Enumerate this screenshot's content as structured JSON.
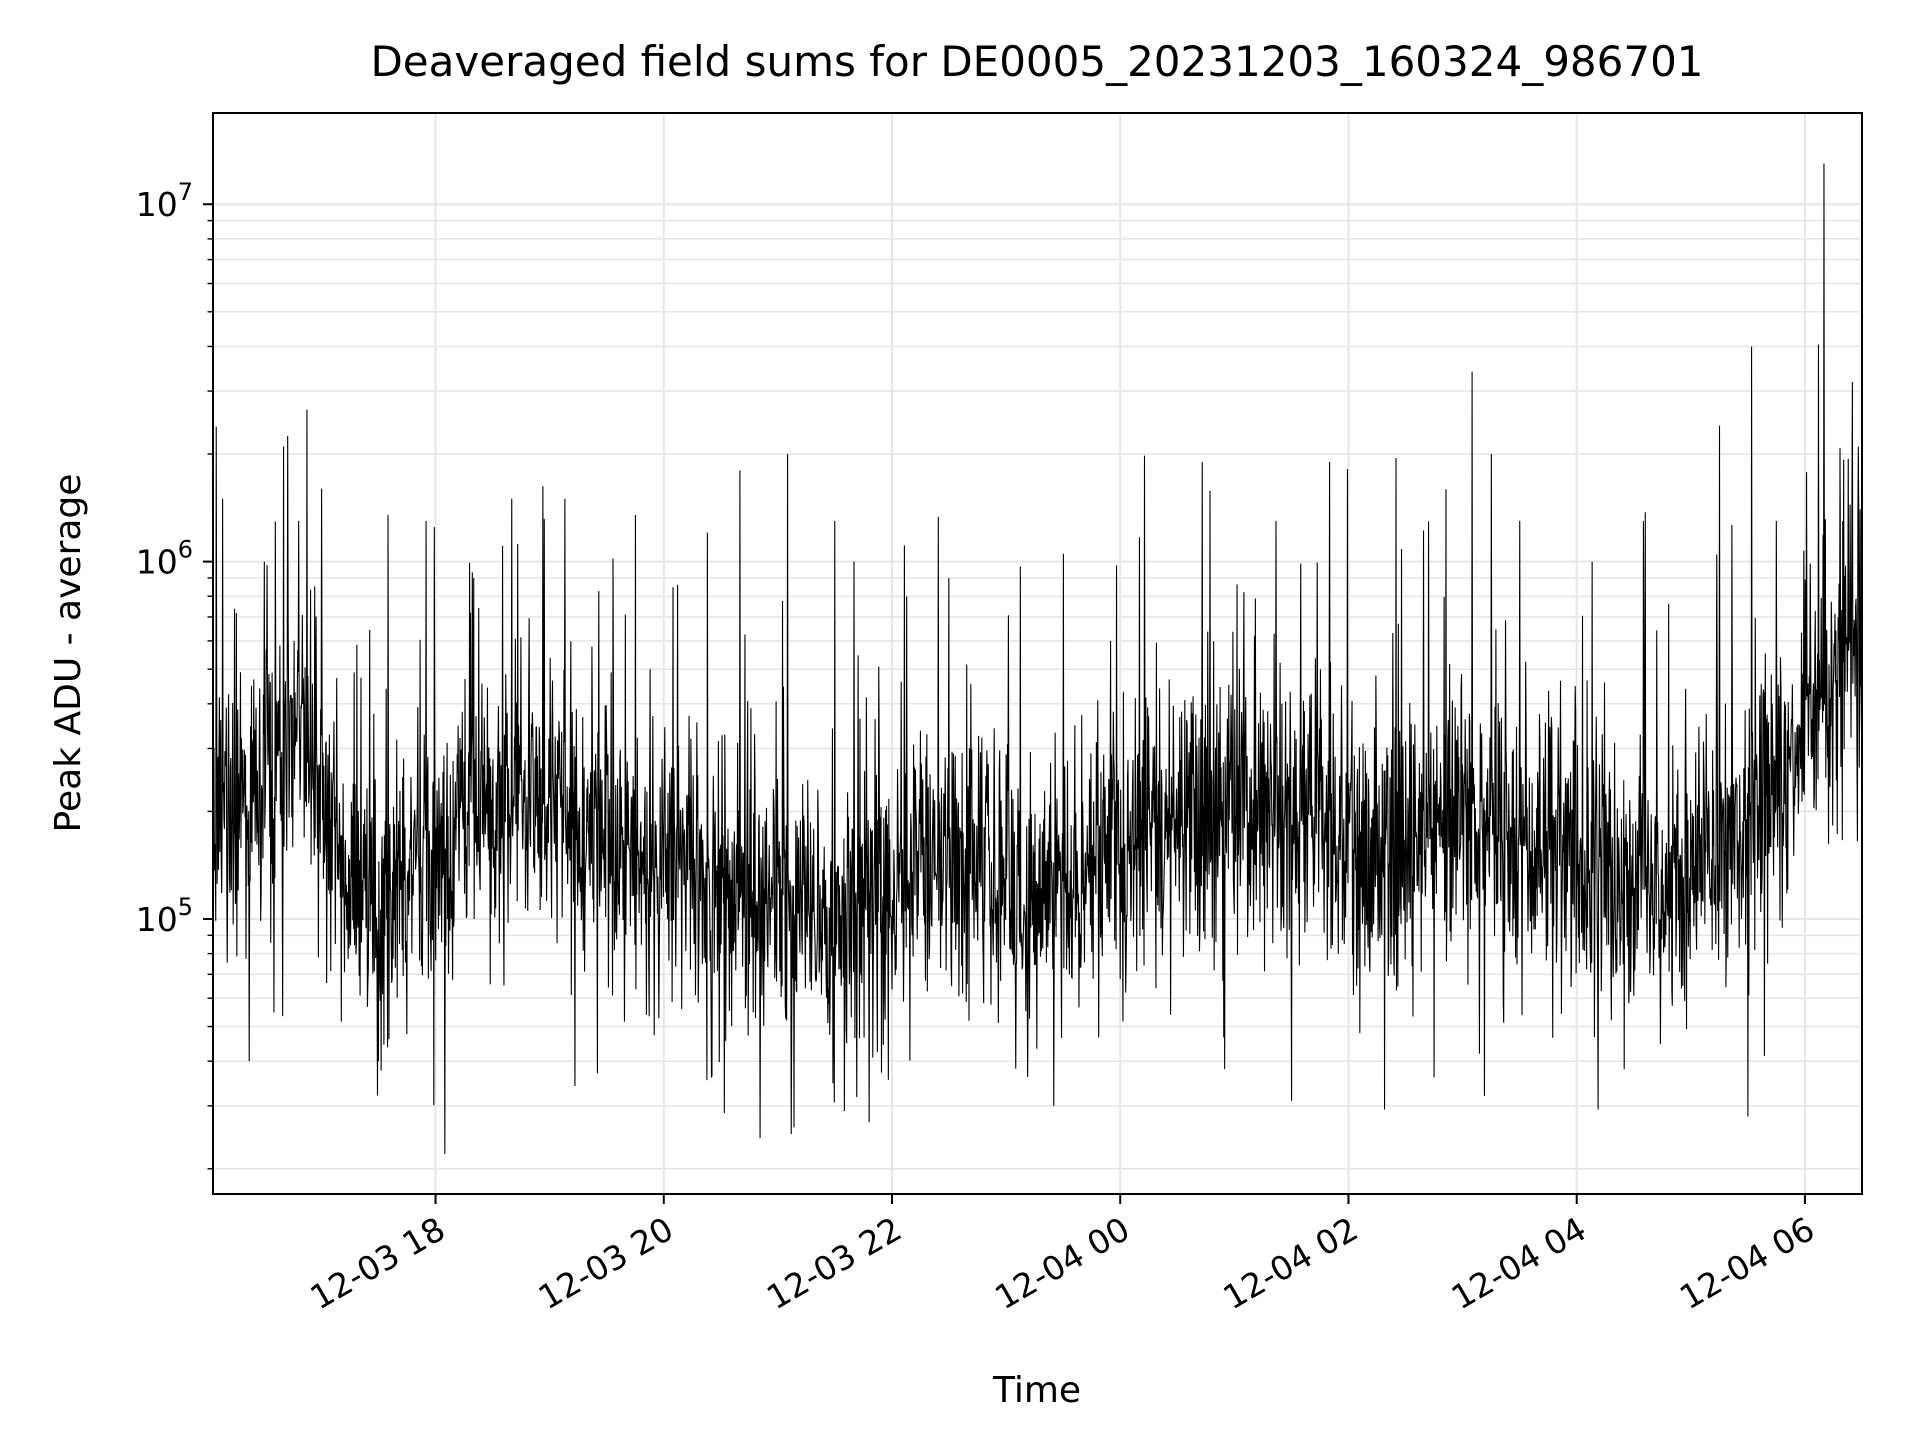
{
  "chart_data": {
    "type": "line",
    "title": "Deaveraged field sums for DE0005_20231203_160324_986701",
    "xlabel": "Time",
    "ylabel": "Peak ADU - average",
    "y_scale": "log",
    "xlim": [
      "2023-12-03 16:03",
      "2023-12-04 06:30"
    ],
    "ylim": [
      17000,
      18000000
    ],
    "x_ticks": [
      "2023-12-03 18:00",
      "2023-12-03 20:00",
      "2023-12-03 22:00",
      "2023-12-04 00:00",
      "2023-12-04 02:00",
      "2023-12-04 04:00",
      "2023-12-04 06:00"
    ],
    "x_tick_labels": [
      "12-03 18",
      "12-03 20",
      "12-03 22",
      "12-04 00",
      "12-04 02",
      "12-04 04",
      "12-04 06"
    ],
    "y_ticks": [
      100000,
      1000000,
      10000000
    ],
    "y_tick_labels": [
      {
        "base": "10",
        "exp": "5"
      },
      {
        "base": "10",
        "exp": "6"
      },
      {
        "base": "10",
        "exp": "7"
      }
    ],
    "grid": true,
    "line_color": "#000000",
    "baseline": [
      {
        "x": "2023-12-03 16:03",
        "y": 200000
      },
      {
        "x": "2023-12-03 16:30",
        "y": 220000
      },
      {
        "x": "2023-12-03 16:50",
        "y": 380000
      },
      {
        "x": "2023-12-03 17:10",
        "y": 140000
      },
      {
        "x": "2023-12-03 17:30",
        "y": 110000
      },
      {
        "x": "2023-12-03 17:50",
        "y": 130000
      },
      {
        "x": "2023-12-03 18:20",
        "y": 200000
      },
      {
        "x": "2023-12-03 18:50",
        "y": 230000
      },
      {
        "x": "2023-12-03 19:20",
        "y": 170000
      },
      {
        "x": "2023-12-03 20:00",
        "y": 140000
      },
      {
        "x": "2023-12-03 20:30",
        "y": 120000
      },
      {
        "x": "2023-12-03 21:00",
        "y": 110000
      },
      {
        "x": "2023-12-03 21:30",
        "y": 100000
      },
      {
        "x": "2023-12-03 22:00",
        "y": 120000
      },
      {
        "x": "2023-12-03 22:30",
        "y": 150000
      },
      {
        "x": "2023-12-03 23:00",
        "y": 130000
      },
      {
        "x": "2023-12-03 23:30",
        "y": 120000
      },
      {
        "x": "2023-12-04 00:00",
        "y": 170000
      },
      {
        "x": "2023-12-04 00:30",
        "y": 210000
      },
      {
        "x": "2023-12-04 01:00",
        "y": 190000
      },
      {
        "x": "2023-12-04 01:30",
        "y": 180000
      },
      {
        "x": "2023-12-04 02:00",
        "y": 170000
      },
      {
        "x": "2023-12-04 02:30",
        "y": 140000
      },
      {
        "x": "2023-12-04 03:00",
        "y": 200000
      },
      {
        "x": "2023-12-04 03:30",
        "y": 160000
      },
      {
        "x": "2023-12-04 04:00",
        "y": 130000
      },
      {
        "x": "2023-12-04 04:30",
        "y": 120000
      },
      {
        "x": "2023-12-04 05:00",
        "y": 150000
      },
      {
        "x": "2023-12-04 05:30",
        "y": 180000
      },
      {
        "x": "2023-12-04 05:50",
        "y": 280000
      },
      {
        "x": "2023-12-04 06:10",
        "y": 450000
      },
      {
        "x": "2023-12-04 06:30",
        "y": 580000
      }
    ],
    "peaks": [
      {
        "x": "2023-12-03 16:08",
        "y": 1500000
      },
      {
        "x": "2023-12-03 16:30",
        "y": 1000000
      },
      {
        "x": "2023-12-03 16:40",
        "y": 2100000
      },
      {
        "x": "2023-12-03 16:48",
        "y": 1300000
      },
      {
        "x": "2023-12-03 17:00",
        "y": 1600000
      },
      {
        "x": "2023-12-03 17:35",
        "y": 1350000
      },
      {
        "x": "2023-12-03 17:55",
        "y": 1300000
      },
      {
        "x": "2023-12-03 18:20",
        "y": 900000
      },
      {
        "x": "2023-12-03 18:40",
        "y": 1500000
      },
      {
        "x": "2023-12-03 19:08",
        "y": 1500000
      },
      {
        "x": "2023-12-03 19:45",
        "y": 1350000
      },
      {
        "x": "2023-12-03 20:25",
        "y": 1200000
      },
      {
        "x": "2023-12-03 20:40",
        "y": 1800000
      },
      {
        "x": "2023-12-03 21:05",
        "y": 2000000
      },
      {
        "x": "2023-12-03 21:30",
        "y": 1300000
      },
      {
        "x": "2023-12-03 21:40",
        "y": 1000000
      },
      {
        "x": "2023-12-03 22:30",
        "y": 900000
      },
      {
        "x": "2023-12-03 23:25",
        "y": 730000
      },
      {
        "x": "2023-12-03 23:55",
        "y": 600000
      },
      {
        "x": "2023-12-04 00:43",
        "y": 1900000
      },
      {
        "x": "2023-12-04 01:22",
        "y": 1300000
      },
      {
        "x": "2023-12-04 01:50",
        "y": 1900000
      },
      {
        "x": "2023-12-04 02:25",
        "y": 1950000
      },
      {
        "x": "2023-12-04 03:05",
        "y": 3400000
      },
      {
        "x": "2023-12-04 03:15",
        "y": 2000000
      },
      {
        "x": "2023-12-04 03:30",
        "y": 1300000
      },
      {
        "x": "2023-12-04 04:08",
        "y": 1000000
      },
      {
        "x": "2023-12-04 04:35",
        "y": 1300000
      },
      {
        "x": "2023-12-04 05:15",
        "y": 2400000
      },
      {
        "x": "2023-12-04 05:32",
        "y": 4000000
      },
      {
        "x": "2023-12-04 05:45",
        "y": 1300000
      },
      {
        "x": "2023-12-04 06:10",
        "y": 13000000
      },
      {
        "x": "2023-12-04 06:20",
        "y": 1300000
      },
      {
        "x": "2023-12-04 06:29",
        "y": 1400000
      }
    ],
    "dips": [
      {
        "x": "2023-12-03 16:22",
        "y": 40000
      },
      {
        "x": "2023-12-03 17:30",
        "y": 40000
      },
      {
        "x": "2023-12-03 18:05",
        "y": 22000
      },
      {
        "x": "2023-12-03 19:25",
        "y": 37000
      },
      {
        "x": "2023-12-03 20:25",
        "y": 36000
      },
      {
        "x": "2023-12-03 21:07",
        "y": 25000
      },
      {
        "x": "2023-12-03 21:35",
        "y": 29000
      },
      {
        "x": "2023-12-03 21:48",
        "y": 27000
      },
      {
        "x": "2023-12-03 23:25",
        "y": 30000
      },
      {
        "x": "2023-12-04 00:55",
        "y": 38000
      },
      {
        "x": "2023-12-04 01:30",
        "y": 31000
      },
      {
        "x": "2023-12-04 02:45",
        "y": 36000
      },
      {
        "x": "2023-12-04 04:25",
        "y": 38000
      },
      {
        "x": "2023-12-04 05:30",
        "y": 28000
      }
    ]
  }
}
